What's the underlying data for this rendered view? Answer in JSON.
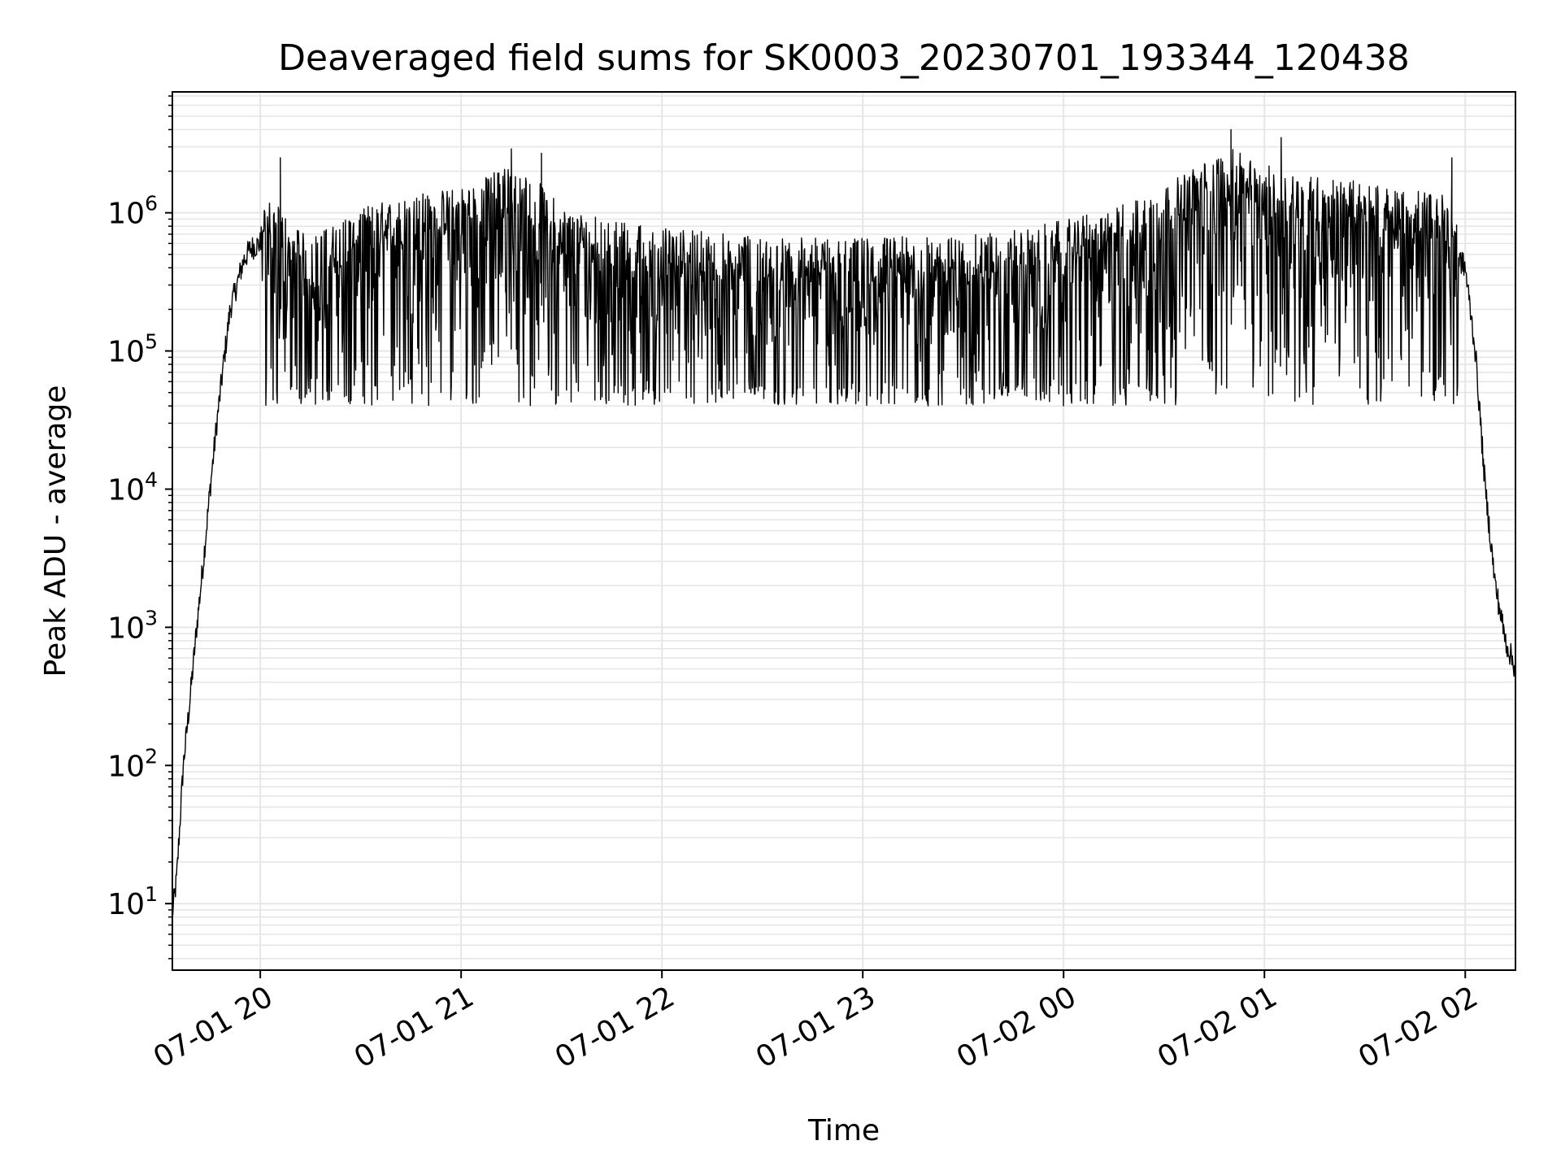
{
  "chart_data": {
    "type": "line",
    "title": "Deaveraged field sums for SK0003_20230701_193344_120438",
    "xlabel": "Time",
    "ylabel": "Peak ADU - average",
    "yscale": "log",
    "ylim": [
      3.3,
      7500000
    ],
    "xlim": [
      "07-01 19:33:44",
      "07-02 02:15:00"
    ],
    "x_ticks": [
      "07-01 20",
      "07-01 21",
      "07-01 22",
      "07-01 23",
      "07-02 00",
      "07-02 01",
      "07-02 02"
    ],
    "y_ticks": [
      {
        "base": "10",
        "exp": "1"
      },
      {
        "base": "10",
        "exp": "2"
      },
      {
        "base": "10",
        "exp": "3"
      },
      {
        "base": "10",
        "exp": "4"
      },
      {
        "base": "10",
        "exp": "5"
      },
      {
        "base": "10",
        "exp": "6"
      }
    ],
    "grid": true,
    "line_color": "#000000",
    "grid_color": "#e6e6e6",
    "series": [
      {
        "x": [
          "07-01 19:33",
          "07-01 19:35",
          "07-01 19:37",
          "07-01 19:39",
          "07-01 19:41",
          "07-01 19:43",
          "07-01 19:45",
          "07-01 19:47",
          "07-01 19:49",
          "07-01 19:51",
          "07-01 19:53",
          "07-01 19:55",
          "07-01 19:57",
          "07-01 20:00",
          "07-01 20:03",
          "07-01 20:06",
          "07-01 20:10",
          "07-01 20:15",
          "07-01 20:20",
          "07-01 20:30",
          "07-01 20:45",
          "07-01 21:00",
          "07-01 21:10",
          "07-01 21:15",
          "07-01 21:25",
          "07-01 21:30",
          "07-01 21:45",
          "07-01 22:00",
          "07-01 22:30",
          "07-01 23:00",
          "07-01 23:30",
          "07-02 00:00",
          "07-02 00:15",
          "07-02 00:30",
          "07-02 00:40",
          "07-02 00:50",
          "07-02 01:00",
          "07-02 01:20",
          "07-02 01:40",
          "07-02 01:50",
          "07-02 01:55",
          "07-02 02:00",
          "07-02 02:03",
          "07-02 02:06",
          "07-02 02:09",
          "07-02 02:12",
          "07-02 02:15"
        ],
        "values": [
          6,
          15,
          100,
          300,
          1000,
          3000,
          10000,
          30000,
          80000,
          200000,
          300000,
          450000,
          550000,
          600000,
          550000,
          500000,
          350000,
          300000,
          350000,
          500000,
          600000,
          700000,
          900000,
          1000000,
          700000,
          500000,
          400000,
          350000,
          300000,
          300000,
          300000,
          400000,
          500000,
          700000,
          1000000,
          1300000,
          1000000,
          800000,
          700000,
          650000,
          600000,
          400000,
          100000,
          10000,
          2000,
          800,
          500
        ],
        "peaks": [
          {
            "x": "07-01 20:06",
            "y": 2500000
          },
          {
            "x": "07-01 21:15",
            "y": 2900000
          },
          {
            "x": "07-01 21:24",
            "y": 2700000
          },
          {
            "x": "07-02 00:50",
            "y": 4000000
          },
          {
            "x": "07-02 01:05",
            "y": 3500000
          },
          {
            "x": "07-02 01:56",
            "y": 2500000
          }
        ],
        "troughs_min": 40000
      }
    ]
  }
}
